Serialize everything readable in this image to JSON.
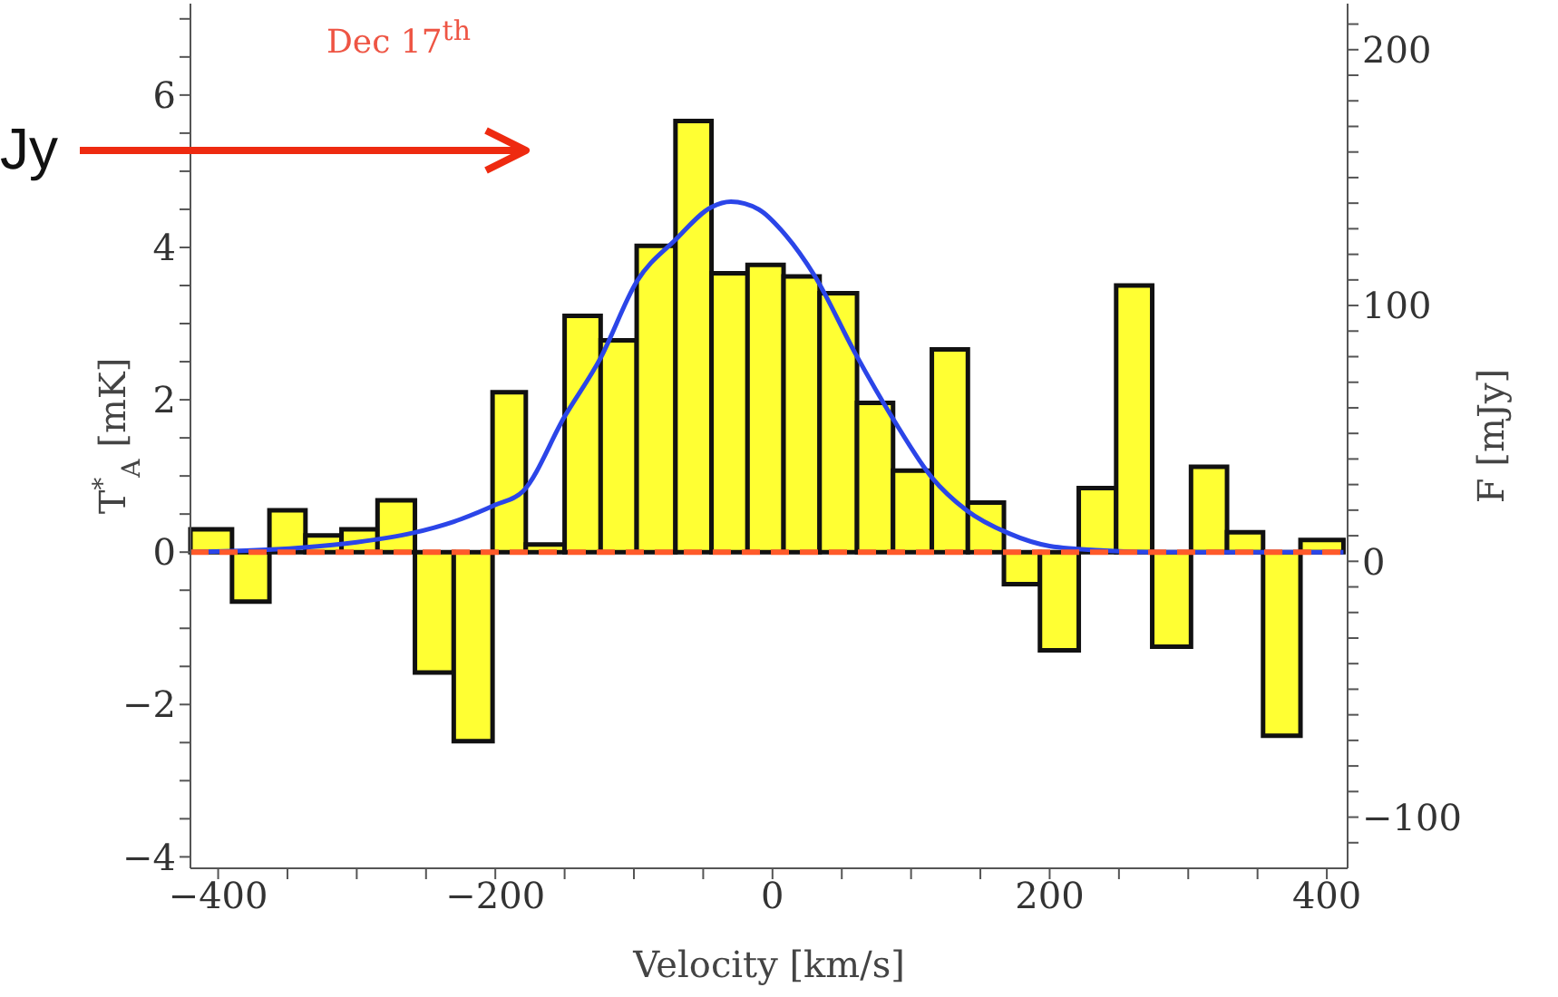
{
  "chart_data": {
    "type": "histogram",
    "xlabel": "Velocity [km/s]",
    "ylabel": "T$^{*}$$_{A}$ [mK]",
    "y2label": "F [mJy]",
    "annotations": [
      "Dec 17$^{th}$",
      "Jy"
    ],
    "bins": [
      -420,
      -390,
      -363,
      -337,
      -311,
      -285,
      -258,
      -230,
      -202,
      -178,
      -150,
      -124,
      -98,
      -70,
      -44,
      -18,
      8,
      34,
      61,
      87,
      115,
      141,
      167,
      193,
      221,
      248,
      274,
      302,
      328,
      354,
      381,
      412
    ],
    "series": [
      {
        "color": "#ffff33",
        "values": [
          0.3,
          -0.65,
          0.55,
          0.22,
          0.3,
          0.68,
          -1.58,
          -2.48,
          2.1,
          0.1,
          3.1,
          2.78,
          4.02,
          5.66,
          3.66,
          3.77,
          3.62,
          3.4,
          1.96,
          1.07,
          2.66,
          0.65,
          -0.42,
          -1.29,
          0.84,
          3.5,
          -1.24,
          1.12,
          0.26,
          -2.41,
          0.16
        ]
      },
      {
        "type": "line",
        "color": "#2b45e8",
        "x": [
          -420,
          -380,
          -340,
          -300,
          -260,
          -230,
          -200,
          -180,
          -150,
          -124,
          -98,
          -70,
          -44,
          -30,
          -10,
          10,
          30,
          60,
          87,
          115,
          140,
          170,
          200,
          240,
          280,
          412
        ],
        "values": [
          0,
          0.02,
          0.06,
          0.13,
          0.25,
          0.4,
          0.62,
          0.8,
          1.78,
          2.55,
          3.55,
          4.1,
          4.53,
          4.6,
          4.5,
          4.15,
          3.64,
          2.6,
          1.75,
          0.98,
          0.55,
          0.25,
          0.08,
          0.02,
          0,
          0
        ]
      }
    ],
    "xlim": [
      -420,
      415
    ],
    "xticks": [
      {
        "value": -400,
        "label": "−400"
      },
      {
        "value": -350,
        "label": null
      },
      {
        "value": -300,
        "label": null
      },
      {
        "value": -250,
        "label": null
      },
      {
        "value": -200,
        "label": "−200"
      },
      {
        "value": -150,
        "label": null
      },
      {
        "value": -100,
        "label": null
      },
      {
        "value": -50,
        "label": null
      },
      0,
      {
        "value": 50,
        "label": null
      },
      {
        "value": 100,
        "label": null
      },
      {
        "value": 150,
        "label": null
      },
      200,
      {
        "value": 250,
        "label": null
      },
      {
        "value": 300,
        "label": null
      },
      {
        "value": 350,
        "label": null
      },
      400
    ],
    "ylim": [
      -4.15,
      7.2
    ],
    "yticks": [
      {
        "value": -4,
        "label": "−4"
      },
      {
        "value": -3.5,
        "label": null
      },
      {
        "value": -3,
        "label": null
      },
      {
        "value": -2.5,
        "label": null
      },
      {
        "value": -2,
        "label": "−2"
      },
      {
        "value": -1.5,
        "label": null
      },
      {
        "value": -1,
        "label": null
      },
      {
        "value": -0.5,
        "label": null
      },
      0,
      {
        "value": 0.5,
        "label": null
      },
      {
        "value": 1,
        "label": null
      },
      {
        "value": 1.5,
        "label": null
      },
      2,
      {
        "value": 2.5,
        "label": null
      },
      {
        "value": 3,
        "label": null
      },
      {
        "value": 3.5,
        "label": null
      },
      4,
      {
        "value": 4.5,
        "label": null
      },
      {
        "value": 5,
        "label": null
      },
      {
        "value": 5.5,
        "label": null
      },
      6,
      {
        "value": 6.5,
        "label": null
      },
      {
        "value": 7,
        "label": null
      }
    ],
    "y2lim": [
      -120,
      218
    ],
    "y2ticks": [
      {
        "value": -110,
        "label": null
      },
      {
        "value": -100,
        "label": "−100"
      },
      {
        "value": -90,
        "label": null
      },
      {
        "value": -80,
        "label": null
      },
      {
        "value": -70,
        "label": null
      },
      {
        "value": -60,
        "label": null
      },
      {
        "value": -50,
        "label": null
      },
      {
        "value": -40,
        "label": null
      },
      {
        "value": -30,
        "label": null
      },
      {
        "value": -20,
        "label": null
      },
      {
        "value": -10,
        "label": null
      },
      0,
      {
        "value": 10,
        "label": null
      },
      {
        "value": 20,
        "label": null
      },
      {
        "value": 30,
        "label": null
      },
      {
        "value": 40,
        "label": null
      },
      {
        "value": 50,
        "label": null
      },
      {
        "value": 60,
        "label": null
      },
      {
        "value": 70,
        "label": null
      },
      {
        "value": 80,
        "label": null
      },
      {
        "value": 90,
        "label": null
      },
      100,
      {
        "value": 110,
        "label": null
      },
      {
        "value": 120,
        "label": null
      },
      {
        "value": 130,
        "label": null
      },
      {
        "value": 140,
        "label": null
      },
      {
        "value": 150,
        "label": null
      },
      {
        "value": 160,
        "label": null
      },
      {
        "value": 170,
        "label": null
      },
      {
        "value": 180,
        "label": null
      },
      {
        "value": 190,
        "label": null
      },
      200,
      {
        "value": 210,
        "label": null
      }
    ],
    "ref_lines": [
      {
        "axis": "y",
        "value": 0,
        "color": "#ff5a2a",
        "line_style": "dashed"
      }
    ]
  }
}
